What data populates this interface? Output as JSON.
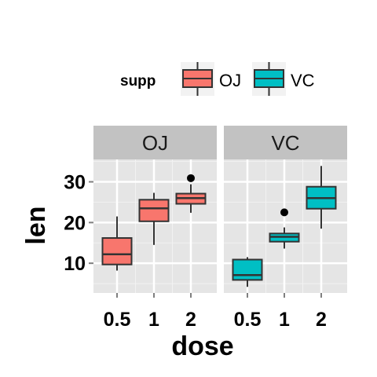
{
  "chart_data": {
    "type": "boxplot",
    "facet_var": "supp",
    "panels": [
      "OJ",
      "VC"
    ],
    "categories": [
      "0.5",
      "1",
      "2"
    ],
    "xlabel": "dose",
    "ylabel": "len",
    "y_ticks": [
      10,
      20,
      30
    ],
    "ylim": [
      2.7,
      35.5
    ],
    "grid": true,
    "legend": {
      "title": "supp",
      "position": "top",
      "entries": [
        {
          "name": "OJ",
          "color": "#F8766D"
        },
        {
          "name": "VC",
          "color": "#00BFC4"
        }
      ]
    },
    "series": [
      {
        "name": "OJ",
        "color": "#F8766D",
        "boxes": [
          {
            "x": "0.5",
            "lower_whisker": 8.2,
            "q1": 9.7,
            "median": 12.2,
            "q3": 16.2,
            "upper_whisker": 21.5,
            "outliers": []
          },
          {
            "x": "1",
            "lower_whisker": 14.5,
            "q1": 20.3,
            "median": 23.5,
            "q3": 25.6,
            "upper_whisker": 27.3,
            "outliers": []
          },
          {
            "x": "2",
            "lower_whisker": 22.4,
            "q1": 24.6,
            "median": 26.0,
            "q3": 27.1,
            "upper_whisker": 29.4,
            "outliers": [
              30.9
            ]
          }
        ]
      },
      {
        "name": "VC",
        "color": "#00BFC4",
        "boxes": [
          {
            "x": "0.5",
            "lower_whisker": 4.2,
            "q1": 5.9,
            "median": 7.1,
            "q3": 10.9,
            "upper_whisker": 11.5,
            "outliers": []
          },
          {
            "x": "1",
            "lower_whisker": 13.6,
            "q1": 15.3,
            "median": 16.5,
            "q3": 17.3,
            "upper_whisker": 18.8,
            "outliers": [
              22.5
            ]
          },
          {
            "x": "2",
            "lower_whisker": 18.5,
            "q1": 23.4,
            "median": 26.0,
            "q3": 28.8,
            "upper_whisker": 33.9,
            "outliers": []
          }
        ]
      }
    ]
  }
}
